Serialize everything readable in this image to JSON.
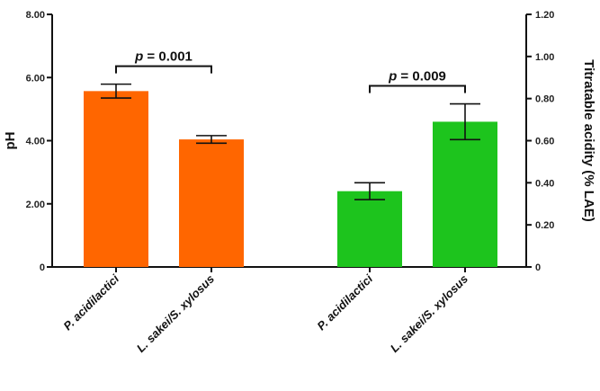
{
  "chart_data": {
    "type": "bar",
    "title": "",
    "left_axis": {
      "label": "pH",
      "range": [
        0,
        8
      ],
      "ticks": [
        "0",
        "2.00",
        "4.00",
        "6.00",
        "8.00"
      ]
    },
    "right_axis": {
      "label": "Titratable acidity (% LAE)",
      "range": [
        0,
        1.2
      ],
      "ticks": [
        "0",
        "0.20",
        "0.40",
        "0.60",
        "0.80",
        "1.00",
        "1.20"
      ]
    },
    "groups": [
      {
        "axis": "left",
        "color": "#ff6600",
        "bars": [
          {
            "category": "P. acidilactici",
            "value": 5.57,
            "error": 0.22
          },
          {
            "category": "L. sakei/S. xylosus",
            "value": 4.04,
            "error": 0.12
          }
        ],
        "significance": "p = 0.001"
      },
      {
        "axis": "right",
        "color": "#1dc41d",
        "bars": [
          {
            "category": "P. acidilactici",
            "value": 0.36,
            "error": 0.04
          },
          {
            "category": "L. sakei/S. xylosus",
            "value": 0.69,
            "error": 0.085
          }
        ],
        "significance": "p = 0.009"
      }
    ],
    "grid": false,
    "legend": "none"
  }
}
